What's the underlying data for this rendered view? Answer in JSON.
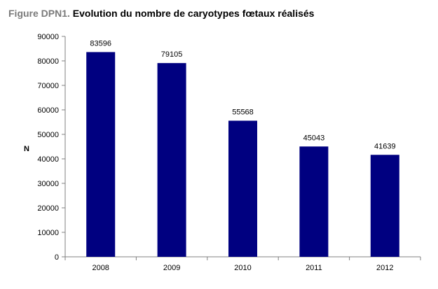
{
  "title_prefix": "Figure DPN1.",
  "title_main": " Evolution du nombre de caryotypes fœtaux réalisés",
  "chart_data": {
    "type": "bar",
    "categories": [
      "2008",
      "2009",
      "2010",
      "2011",
      "2012"
    ],
    "values": [
      83596,
      79105,
      55568,
      45043,
      41639
    ],
    "data_labels": [
      "83596",
      "79105",
      "55568",
      "45043",
      "41639"
    ],
    "ylabel": "N",
    "xlabel": "",
    "ylim": [
      0,
      90000
    ],
    "yticks": [
      0,
      10000,
      20000,
      30000,
      40000,
      50000,
      60000,
      70000,
      80000,
      90000
    ],
    "ytick_labels": [
      "0",
      "10000",
      "20000",
      "30000",
      "40000",
      "50000",
      "60000",
      "70000",
      "80000",
      "90000"
    ],
    "grid": false,
    "bar_color": "#000080"
  }
}
